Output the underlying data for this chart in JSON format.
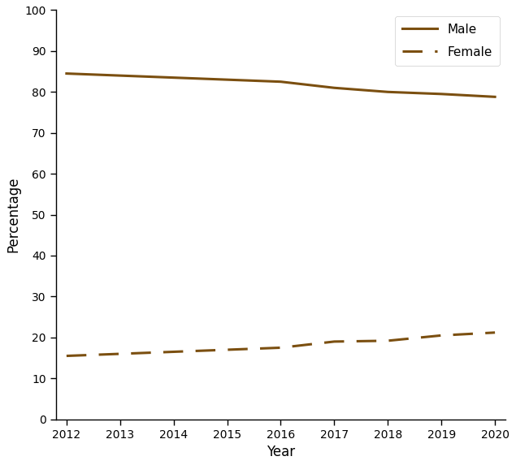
{
  "years": [
    2012,
    2013,
    2014,
    2015,
    2016,
    2017,
    2018,
    2019,
    2020
  ],
  "male": [
    84.5,
    84.0,
    83.5,
    83.0,
    82.5,
    81.0,
    80.0,
    79.5,
    78.8
  ],
  "female": [
    15.5,
    16.0,
    16.5,
    17.0,
    17.5,
    19.0,
    19.2,
    20.5,
    21.2
  ],
  "line_color": "#7B4F10",
  "xlabel": "Year",
  "ylabel": "Percentage",
  "ylim": [
    0,
    100
  ],
  "xlim": [
    2012,
    2020
  ],
  "yticks": [
    0,
    10,
    20,
    30,
    40,
    50,
    60,
    70,
    80,
    90,
    100
  ],
  "xticks": [
    2012,
    2013,
    2014,
    2015,
    2016,
    2017,
    2018,
    2019,
    2020
  ],
  "legend_male": "Male",
  "legend_female": "Female",
  "background_color": "#ffffff",
  "linewidth": 2.2
}
